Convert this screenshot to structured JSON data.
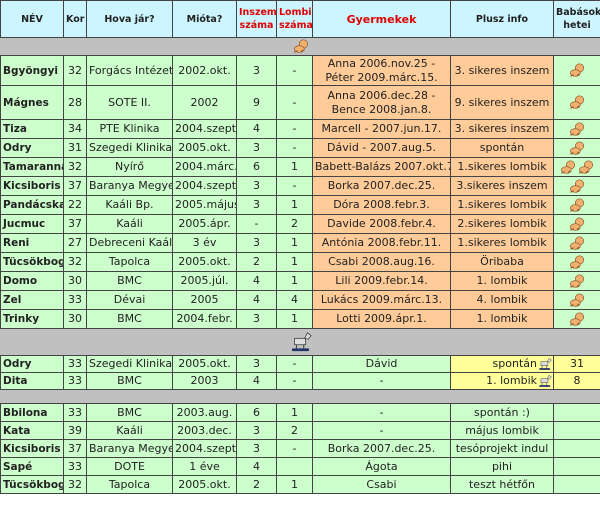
{
  "headers": [
    "NÉV",
    "Kor",
    "Hova jár?",
    "Mióta?",
    "Inszem száma",
    "Lombik száma",
    "Gyermekek",
    "Plusz info",
    "Babások hetei"
  ],
  "colors": {
    "header_bg": "#ccf5ff",
    "row_bg": "#ccffcc",
    "children_bg": "#ffcc99",
    "pregnant_bg": "#ffff99",
    "separator": "#c0c0c0",
    "red_header": "#e00000"
  },
  "section1_icon": "baby-icon",
  "section1": [
    {
      "name": "Bgyöngyi",
      "age": "32",
      "clinic": "Forgács Intézet",
      "since": "2002.okt.",
      "inszem": "3",
      "lombik": "-",
      "children": "Anna 2006.nov.25 - Péter 2009.márc.15.",
      "info": "3. sikeres inszem",
      "babies": 1
    },
    {
      "name": "Mágnes",
      "age": "28",
      "clinic": "SOTE II.",
      "since": "2002",
      "inszem": "9",
      "lombik": "-",
      "children": "Anna 2006.dec.28 - Bence 2008.jan.8.",
      "info": "9. sikeres inszem",
      "babies": 1
    },
    {
      "name": "Tiza",
      "age": "34",
      "clinic": "PTE Klinika",
      "since": "2004.szept.",
      "inszem": "4",
      "lombik": "-",
      "children": "Marcell - 2007.jun.17.",
      "info": "3. sikeres inszem",
      "babies": 1
    },
    {
      "name": "Odry",
      "age": "31",
      "clinic": "Szegedi Klinika",
      "since": "2005.okt.",
      "inszem": "3",
      "lombik": "-",
      "children": "Dávid - 2007.aug.5.",
      "info": "spontán",
      "babies": 1
    },
    {
      "name": "Tamaranna",
      "age": "32",
      "clinic": "Nyírő",
      "since": "2004.márc.",
      "inszem": "6",
      "lombik": "1",
      "children": "Babett-Balázs 2007.okt.7.",
      "info": "1.sikeres lombik",
      "babies": 2
    },
    {
      "name": "Kicsiboris",
      "age": "37",
      "clinic": "Baranya Megyei",
      "since": "2004.szept.",
      "inszem": "3",
      "lombik": "-",
      "children": "Borka 2007.dec.25.",
      "info": "3.sikeres inszem",
      "babies": 1
    },
    {
      "name": "Pandácska",
      "age": "22",
      "clinic": "Kaáli Bp.",
      "since": "2005.május",
      "inszem": "3",
      "lombik": "1",
      "children": "Dóra 2008.febr.3.",
      "info": "1.sikeres lombik",
      "babies": 1
    },
    {
      "name": "Jucmuc",
      "age": "37",
      "clinic": "Kaáli",
      "since": "2005.ápr.",
      "inszem": "-",
      "lombik": "2",
      "children": "Davide 2008.febr.4.",
      "info": "2.sikeres lombik",
      "babies": 1
    },
    {
      "name": "Reni",
      "age": "27",
      "clinic": "Debreceni Kaáli",
      "since": "3 év",
      "inszem": "3",
      "lombik": "1",
      "children": "Antónia 2008.febr.11.",
      "info": "1.sikeres lombik",
      "babies": 1
    },
    {
      "name": "Tücsökbogár",
      "age": "32",
      "clinic": "Tapolca",
      "since": "2005.okt.",
      "inszem": "2",
      "lombik": "1",
      "children": "Csabi 2008.aug.16.",
      "info": "Öribaba",
      "babies": 1
    },
    {
      "name": "Domo",
      "age": "30",
      "clinic": "BMC",
      "since": "2005.júl.",
      "inszem": "4",
      "lombik": "1",
      "children": "Lili 2009.febr.14.",
      "info": "1. lombik",
      "babies": 1
    },
    {
      "name": "Zel",
      "age": "33",
      "clinic": "Dévai",
      "since": "2005",
      "inszem": "4",
      "lombik": "4",
      "children": "Lukács 2009.márc.13.",
      "info": "4. lombik",
      "babies": 1
    },
    {
      "name": "Trinky",
      "age": "30",
      "clinic": "BMC",
      "since": "2004.febr.",
      "inszem": "3",
      "lombik": "1",
      "children": "Lotti 2009.ápr.1.",
      "info": "1. lombik",
      "babies": 1
    }
  ],
  "section2_icon": "rocking-horse-icon",
  "section2": [
    {
      "name": "Odry",
      "age": "33",
      "clinic": "Szegedi Klinika",
      "since": "2005.okt.",
      "inszem": "3",
      "lombik": "-",
      "children": "Dávid",
      "info": "spontán",
      "weeks": "31"
    },
    {
      "name": "Dita",
      "age": "33",
      "clinic": "BMC",
      "since": "2003",
      "inszem": "4",
      "lombik": "-",
      "children": "-",
      "info": "1. lombik",
      "weeks": "8"
    }
  ],
  "section3": [
    {
      "name": "Bbilona",
      "age": "33",
      "clinic": "BMC",
      "since": "2003.aug.",
      "inszem": "6",
      "lombik": "1",
      "children": "-",
      "info": "spontán :)"
    },
    {
      "name": "Kata",
      "age": "39",
      "clinic": "Kaáli",
      "since": "2003.dec.",
      "inszem": "3",
      "lombik": "2",
      "children": "-",
      "info": "május lombik"
    },
    {
      "name": "Kicsiboris",
      "age": "37",
      "clinic": "Baranya Megyei",
      "since": "2004.szept.",
      "inszem": "3",
      "lombik": "-",
      "children": "Borka 2007.dec.25.",
      "info": "tesóprojekt indul"
    },
    {
      "name": "Sapé",
      "age": "33",
      "clinic": "DOTE",
      "since": "1 éve",
      "inszem": "4",
      "lombik": "",
      "children": "Ágota",
      "info": "pihi"
    },
    {
      "name": "Tücsökbogár",
      "age": "32",
      "clinic": "Tapolca",
      "since": "2005.okt.",
      "inszem": "2",
      "lombik": "1",
      "children": "Csabi",
      "info": "teszt hétfőn"
    }
  ]
}
